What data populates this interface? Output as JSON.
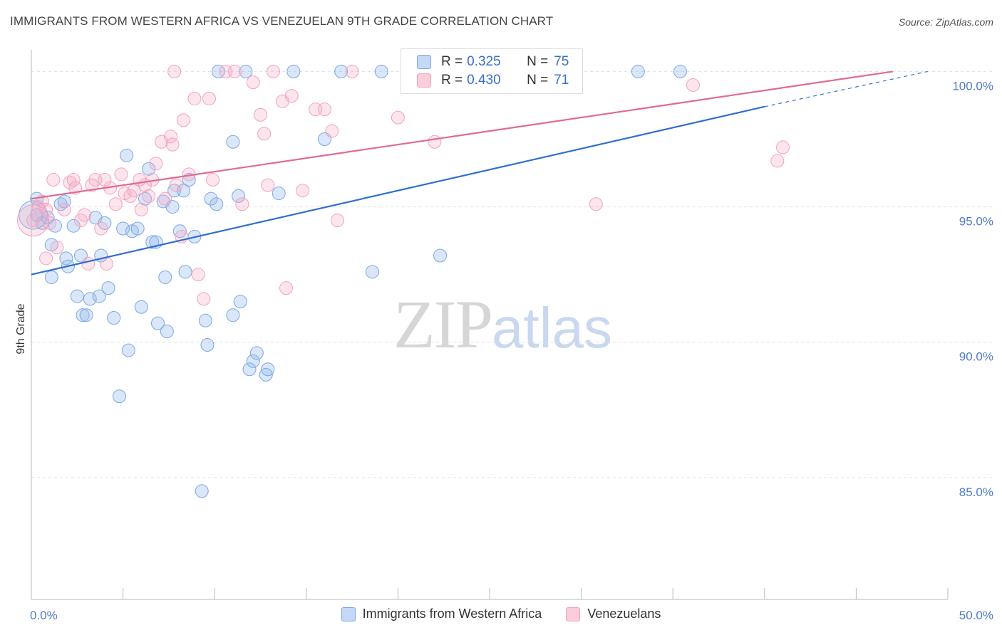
{
  "title": "IMMIGRANTS FROM WESTERN AFRICA VS VENEZUELAN 9TH GRADE CORRELATION CHART",
  "source": "Source: ZipAtlas.com",
  "watermark": {
    "zip": "ZIP",
    "atlas": "atlas"
  },
  "legend": {
    "r_label": "R =",
    "n_label": "N =",
    "rows": [
      {
        "r": "0.325",
        "n": "75"
      },
      {
        "r": "0.430",
        "n": "71"
      }
    ]
  },
  "chart_data": {
    "type": "scatter",
    "title": "IMMIGRANTS FROM WESTERN AFRICA VS VENEZUELAN 9TH GRADE CORRELATION CHART",
    "xlabel": "",
    "ylabel": "9th Grade",
    "xlim": [
      0,
      50
    ],
    "ylim": [
      80.5,
      100.8
    ],
    "x_tick_labels": [
      "0.0%",
      "50.0%"
    ],
    "y_ticks": [
      85,
      90,
      95,
      100
    ],
    "y_tick_labels": [
      "85.0%",
      "90.0%",
      "95.0%",
      "100.0%"
    ],
    "grid": true,
    "legend_position": "top-center",
    "colors": {
      "blue": "#7aa7e6",
      "blue_line": "#2f6fcf",
      "pink": "#f2a3bd",
      "pink_line": "#e06a93"
    },
    "series": [
      {
        "name": "Immigrants from Western Africa",
        "color": "blue",
        "r": 0.325,
        "n": 75,
        "trend": {
          "x0": 0,
          "y0": 92.5,
          "x1": 40,
          "y1": 98.7,
          "dash_to_x": 48.9,
          "dash_to_y": 100.0
        },
        "points": [
          [
            0.3,
            95.3
          ],
          [
            0.3,
            94.7
          ],
          [
            0.6,
            94.4
          ],
          [
            0.9,
            94.6
          ],
          [
            1.1,
            93.6
          ],
          [
            1.3,
            94.3
          ],
          [
            1.1,
            92.4
          ],
          [
            1.6,
            95.1
          ],
          [
            1.8,
            95.2
          ],
          [
            1.9,
            93.1
          ],
          [
            2.0,
            92.8
          ],
          [
            2.3,
            94.3
          ],
          [
            2.5,
            91.7
          ],
          [
            2.7,
            93.2
          ],
          [
            2.8,
            91.0
          ],
          [
            3.0,
            91.0
          ],
          [
            3.2,
            91.6
          ],
          [
            3.5,
            94.6
          ],
          [
            3.7,
            91.7
          ],
          [
            3.8,
            93.2
          ],
          [
            4.0,
            94.4
          ],
          [
            4.2,
            92.0
          ],
          [
            4.5,
            90.9
          ],
          [
            4.8,
            88.0
          ],
          [
            5.0,
            94.2
          ],
          [
            5.2,
            96.9
          ],
          [
            5.3,
            89.7
          ],
          [
            5.5,
            94.1
          ],
          [
            5.8,
            94.2
          ],
          [
            6.0,
            91.3
          ],
          [
            6.2,
            95.3
          ],
          [
            6.4,
            96.4
          ],
          [
            6.6,
            93.7
          ],
          [
            6.8,
            93.7
          ],
          [
            6.9,
            90.7
          ],
          [
            7.2,
            95.2
          ],
          [
            7.3,
            92.4
          ],
          [
            7.4,
            90.4
          ],
          [
            7.7,
            95.0
          ],
          [
            7.8,
            95.6
          ],
          [
            8.1,
            94.1
          ],
          [
            8.3,
            95.6
          ],
          [
            8.4,
            92.6
          ],
          [
            8.6,
            96.0
          ],
          [
            8.9,
            93.9
          ],
          [
            9.3,
            84.5
          ],
          [
            9.5,
            90.8
          ],
          [
            9.6,
            89.9
          ],
          [
            9.8,
            95.3
          ],
          [
            10.1,
            95.1
          ],
          [
            10.2,
            100.0
          ],
          [
            11.0,
            97.4
          ],
          [
            11.0,
            91.0
          ],
          [
            11.3,
            95.4
          ],
          [
            11.4,
            91.5
          ],
          [
            11.7,
            100.0
          ],
          [
            11.9,
            89.0
          ],
          [
            12.1,
            89.3
          ],
          [
            12.3,
            89.6
          ],
          [
            12.8,
            88.8
          ],
          [
            12.9,
            89.0
          ],
          [
            13.5,
            95.5
          ],
          [
            14.3,
            100.0
          ],
          [
            16.0,
            97.5
          ],
          [
            16.9,
            100.0
          ],
          [
            18.6,
            92.6
          ],
          [
            19.1,
            100.0
          ],
          [
            22.3,
            93.2
          ],
          [
            33.1,
            100.0
          ],
          [
            35.4,
            100.0
          ]
        ]
      },
      {
        "name": "Venezuelans",
        "color": "pink",
        "r": 0.43,
        "n": 71,
        "trend": {
          "x0": 0,
          "y0": 95.3,
          "x1": 47.0,
          "y1": 100.0
        },
        "points": [
          [
            0.1,
            94.5
          ],
          [
            0.4,
            95.0
          ],
          [
            0.6,
            95.2
          ],
          [
            0.8,
            94.9
          ],
          [
            1.0,
            94.4
          ],
          [
            0.8,
            93.1
          ],
          [
            1.2,
            96.0
          ],
          [
            1.4,
            93.5
          ],
          [
            1.8,
            94.9
          ],
          [
            2.1,
            95.9
          ],
          [
            2.3,
            96.0
          ],
          [
            2.4,
            95.7
          ],
          [
            2.7,
            94.5
          ],
          [
            2.9,
            94.7
          ],
          [
            3.1,
            92.9
          ],
          [
            3.3,
            95.8
          ],
          [
            3.5,
            96.0
          ],
          [
            3.8,
            94.2
          ],
          [
            4.0,
            96.0
          ],
          [
            4.1,
            92.9
          ],
          [
            4.3,
            95.7
          ],
          [
            4.6,
            95.1
          ],
          [
            4.9,
            96.2
          ],
          [
            5.1,
            95.5
          ],
          [
            5.4,
            95.4
          ],
          [
            5.6,
            95.6
          ],
          [
            5.9,
            96.0
          ],
          [
            6.0,
            94.9
          ],
          [
            6.2,
            95.8
          ],
          [
            6.4,
            95.4
          ],
          [
            6.6,
            96.0
          ],
          [
            6.8,
            96.6
          ],
          [
            7.1,
            97.4
          ],
          [
            7.3,
            95.3
          ],
          [
            7.6,
            97.6
          ],
          [
            7.7,
            97.3
          ],
          [
            7.8,
            100.0
          ],
          [
            7.9,
            95.8
          ],
          [
            8.2,
            93.9
          ],
          [
            8.3,
            98.2
          ],
          [
            8.6,
            96.2
          ],
          [
            8.9,
            99.0
          ],
          [
            9.1,
            92.5
          ],
          [
            9.4,
            91.6
          ],
          [
            9.7,
            99.0
          ],
          [
            9.9,
            96.0
          ],
          [
            10.6,
            100.0
          ],
          [
            11.1,
            100.0
          ],
          [
            11.5,
            95.1
          ],
          [
            12.1,
            99.6
          ],
          [
            12.5,
            98.4
          ],
          [
            12.7,
            97.7
          ],
          [
            12.9,
            95.8
          ],
          [
            13.2,
            100.0
          ],
          [
            13.7,
            98.9
          ],
          [
            13.9,
            92.0
          ],
          [
            14.2,
            99.1
          ],
          [
            14.8,
            95.6
          ],
          [
            15.5,
            98.6
          ],
          [
            16.0,
            98.6
          ],
          [
            16.4,
            97.8
          ],
          [
            16.7,
            94.5
          ],
          [
            17.5,
            100.0
          ],
          [
            20.0,
            98.3
          ],
          [
            22.0,
            97.4
          ],
          [
            30.8,
            95.1
          ],
          [
            36.1,
            99.5
          ],
          [
            40.7,
            96.7
          ],
          [
            41.0,
            97.2
          ]
        ]
      }
    ]
  }
}
